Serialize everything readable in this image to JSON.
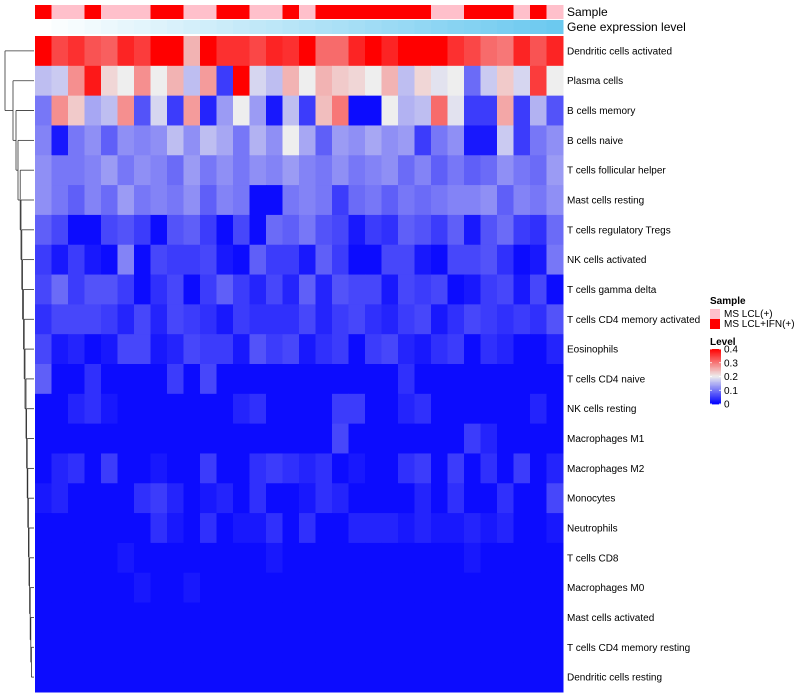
{
  "chart_data": {
    "type": "heatmap",
    "title": "",
    "annotations": {
      "sample": {
        "label": "Sample",
        "values": [
          1,
          0,
          0,
          1,
          0,
          0,
          0,
          1,
          1,
          0,
          0,
          1,
          1,
          0,
          0,
          1,
          0,
          1,
          1,
          1,
          1,
          1,
          1,
          1,
          0,
          0,
          1,
          1,
          1,
          0,
          1,
          0
        ],
        "colors": [
          "#ffc0cb",
          "#ff0000"
        ]
      },
      "gene_expression": {
        "label": "Gene expression level",
        "gradient": [
          "#ffffff",
          "#6cc9ef"
        ]
      }
    },
    "rows": [
      {
        "name": "Dendritic cells activated",
        "values": [
          0.4,
          0.34,
          0.36,
          0.33,
          0.32,
          0.37,
          0.35,
          0.4,
          0.4,
          0.25,
          0.4,
          0.36,
          0.36,
          0.34,
          0.37,
          0.36,
          0.4,
          0.31,
          0.31,
          0.37,
          0.4,
          0.37,
          0.4,
          0.4,
          0.4,
          0.36,
          0.34,
          0.31,
          0.3,
          0.37,
          0.33,
          0.37
        ]
      },
      {
        "name": "Plasma cells",
        "values": [
          0.16,
          0.17,
          0.28,
          0.38,
          0.22,
          0.2,
          0.28,
          0.2,
          0.25,
          0.16,
          0.27,
          0.05,
          0.4,
          0.18,
          0.16,
          0.25,
          0.2,
          0.25,
          0.23,
          0.22,
          0.2,
          0.25,
          0.16,
          0.22,
          0.19,
          0.2,
          0.09,
          0.17,
          0.23,
          0.18,
          0.35,
          0.2
        ]
      },
      {
        "name": "B cells memory",
        "values": [
          0.1,
          0.28,
          0.23,
          0.14,
          0.16,
          0.28,
          0.07,
          0.18,
          0.05,
          0.27,
          0.03,
          0.13,
          0.2,
          0.13,
          0.02,
          0.16,
          0.05,
          0.24,
          0.3,
          0.01,
          0.01,
          0.2,
          0.15,
          0.16,
          0.31,
          0.19,
          0.05,
          0.05,
          0.26,
          0.05,
          0.15,
          0.07
        ]
      },
      {
        "name": "B cells naive",
        "values": [
          0.11,
          0.02,
          0.1,
          0.12,
          0.08,
          0.12,
          0.11,
          0.12,
          0.16,
          0.12,
          0.16,
          0.14,
          0.1,
          0.15,
          0.12,
          0.2,
          0.14,
          0.08,
          0.13,
          0.12,
          0.14,
          0.12,
          0.13,
          0.05,
          0.1,
          0.12,
          0.02,
          0.02,
          0.17,
          0.05,
          0.1,
          0.12
        ]
      },
      {
        "name": "T cells follicular helper",
        "values": [
          0.12,
          0.1,
          0.1,
          0.11,
          0.13,
          0.1,
          0.12,
          0.11,
          0.09,
          0.13,
          0.1,
          0.12,
          0.1,
          0.12,
          0.11,
          0.13,
          0.11,
          0.1,
          0.12,
          0.1,
          0.11,
          0.12,
          0.09,
          0.11,
          0.08,
          0.1,
          0.08,
          0.09,
          0.12,
          0.1,
          0.09,
          0.13
        ]
      },
      {
        "name": "Mast cells resting",
        "values": [
          0.12,
          0.1,
          0.08,
          0.11,
          0.09,
          0.13,
          0.1,
          0.11,
          0.1,
          0.12,
          0.08,
          0.11,
          0.1,
          0.01,
          0.01,
          0.1,
          0.11,
          0.1,
          0.05,
          0.09,
          0.1,
          0.08,
          0.1,
          0.09,
          0.1,
          0.11,
          0.11,
          0.12,
          0.08,
          0.11,
          0.1,
          0.12
        ]
      },
      {
        "name": "T cells regulatory  Tregs",
        "values": [
          0.08,
          0.06,
          0.01,
          0.01,
          0.06,
          0.07,
          0.05,
          0.01,
          0.07,
          0.08,
          0.05,
          0.01,
          0.06,
          0.01,
          0.09,
          0.08,
          0.1,
          0.07,
          0.06,
          0.02,
          0.05,
          0.04,
          0.08,
          0.07,
          0.05,
          0.08,
          0.02,
          0.07,
          0.09,
          0.05,
          0.04,
          0.09
        ]
      },
      {
        "name": "NK cells activated",
        "values": [
          0.05,
          0.02,
          0.05,
          0.02,
          0.01,
          0.11,
          0.01,
          0.06,
          0.05,
          0.05,
          0.06,
          0.02,
          0.01,
          0.08,
          0.05,
          0.05,
          0.02,
          0.08,
          0.05,
          0.01,
          0.01,
          0.06,
          0.06,
          0.02,
          0.01,
          0.06,
          0.06,
          0.07,
          0.04,
          0.01,
          0.02,
          0.1
        ]
      },
      {
        "name": "T cells gamma delta",
        "values": [
          0.06,
          0.09,
          0.05,
          0.07,
          0.07,
          0.05,
          0.01,
          0.04,
          0.06,
          0.01,
          0.05,
          0.08,
          0.05,
          0.03,
          0.06,
          0.03,
          0.08,
          0.03,
          0.07,
          0.06,
          0.06,
          0.02,
          0.06,
          0.05,
          0.06,
          0.01,
          0.02,
          0.05,
          0.06,
          0.02,
          0.06,
          0.01
        ]
      },
      {
        "name": "T cells CD4 memory activated",
        "values": [
          0.04,
          0.06,
          0.06,
          0.06,
          0.05,
          0.03,
          0.06,
          0.03,
          0.06,
          0.05,
          0.04,
          0.02,
          0.05,
          0.04,
          0.04,
          0.04,
          0.06,
          0.03,
          0.05,
          0.06,
          0.04,
          0.03,
          0.05,
          0.06,
          0.02,
          0.04,
          0.06,
          0.05,
          0.04,
          0.05,
          0.04,
          0.07
        ]
      },
      {
        "name": "Eosinophils",
        "values": [
          0.06,
          0.02,
          0.03,
          0.01,
          0.02,
          0.06,
          0.06,
          0.02,
          0.03,
          0.06,
          0.05,
          0.05,
          0.02,
          0.07,
          0.05,
          0.06,
          0.02,
          0.04,
          0.05,
          0.01,
          0.05,
          0.06,
          0.03,
          0.02,
          0.04,
          0.05,
          0.01,
          0.04,
          0.03,
          0.01,
          0.01,
          0.03
        ]
      },
      {
        "name": "T cells CD4 naive",
        "values": [
          0.08,
          0.01,
          0.01,
          0.04,
          0.01,
          0.01,
          0.01,
          0.01,
          0.05,
          0.01,
          0.06,
          0.01,
          0.01,
          0.01,
          0.01,
          0.01,
          0.01,
          0.01,
          0.01,
          0.01,
          0.01,
          0.01,
          0.04,
          0.01,
          0.01,
          0.01,
          0.01,
          0.01,
          0.01,
          0.01,
          0.01,
          0.01
        ]
      },
      {
        "name": "NK cells resting",
        "values": [
          0.01,
          0.01,
          0.03,
          0.04,
          0.02,
          0.01,
          0.01,
          0.01,
          0.01,
          0.01,
          0.01,
          0.01,
          0.03,
          0.04,
          0.01,
          0.01,
          0.01,
          0.01,
          0.05,
          0.05,
          0.01,
          0.01,
          0.03,
          0.04,
          0.01,
          0.01,
          0.01,
          0.01,
          0.01,
          0.01,
          0.03,
          0.01
        ]
      },
      {
        "name": "Macrophages M1",
        "values": [
          0.01,
          0.01,
          0.01,
          0.01,
          0.01,
          0.01,
          0.01,
          0.01,
          0.01,
          0.01,
          0.01,
          0.01,
          0.01,
          0.01,
          0.01,
          0.01,
          0.01,
          0.01,
          0.06,
          0.01,
          0.01,
          0.01,
          0.01,
          0.01,
          0.01,
          0.01,
          0.05,
          0.03,
          0.01,
          0.01,
          0.01,
          0.01
        ]
      },
      {
        "name": "Macrophages M2",
        "values": [
          0.01,
          0.03,
          0.04,
          0.01,
          0.05,
          0.01,
          0.01,
          0.02,
          0.01,
          0.01,
          0.05,
          0.01,
          0.01,
          0.04,
          0.05,
          0.04,
          0.03,
          0.04,
          0.01,
          0.02,
          0.01,
          0.01,
          0.04,
          0.05,
          0.01,
          0.05,
          0.01,
          0.04,
          0.01,
          0.05,
          0.01,
          0.03
        ]
      },
      {
        "name": "Monocytes",
        "values": [
          0.02,
          0.03,
          0.01,
          0.01,
          0.01,
          0.01,
          0.04,
          0.05,
          0.03,
          0.01,
          0.02,
          0.03,
          0.01,
          0.04,
          0.01,
          0.01,
          0.02,
          0.04,
          0.03,
          0.01,
          0.01,
          0.01,
          0.01,
          0.03,
          0.01,
          0.04,
          0.01,
          0.01,
          0.04,
          0.01,
          0.01,
          0.06
        ]
      },
      {
        "name": "Neutrophils",
        "values": [
          0.01,
          0.01,
          0.01,
          0.01,
          0.01,
          0.01,
          0.01,
          0.04,
          0.02,
          0.01,
          0.04,
          0.01,
          0.02,
          0.02,
          0.04,
          0.01,
          0.04,
          0.01,
          0.01,
          0.03,
          0.03,
          0.03,
          0.02,
          0.03,
          0.02,
          0.02,
          0.03,
          0.02,
          0.03,
          0.01,
          0.01,
          0.02
        ]
      },
      {
        "name": "T cells CD8",
        "values": [
          0.01,
          0.01,
          0.01,
          0.01,
          0.01,
          0.02,
          0.01,
          0.01,
          0.01,
          0.01,
          0.01,
          0.01,
          0.01,
          0.01,
          0.02,
          0.01,
          0.01,
          0.01,
          0.01,
          0.01,
          0.01,
          0.01,
          0.01,
          0.01,
          0.01,
          0.01,
          0.02,
          0.01,
          0.01,
          0.01,
          0.01,
          0.01
        ]
      },
      {
        "name": "Macrophages M0",
        "values": [
          0.01,
          0.01,
          0.01,
          0.01,
          0.01,
          0.01,
          0.02,
          0.01,
          0.01,
          0.02,
          0.01,
          0.01,
          0.01,
          0.01,
          0.01,
          0.01,
          0.01,
          0.01,
          0.01,
          0.01,
          0.01,
          0.01,
          0.01,
          0.01,
          0.01,
          0.01,
          0.01,
          0.01,
          0.01,
          0.01,
          0.01,
          0.01
        ]
      },
      {
        "name": "Mast cells activated",
        "values": [
          0.01,
          0.01,
          0.01,
          0.01,
          0.01,
          0.01,
          0.01,
          0.01,
          0.01,
          0.01,
          0.01,
          0.01,
          0.01,
          0.01,
          0.01,
          0.01,
          0.01,
          0.01,
          0.01,
          0.01,
          0.01,
          0.01,
          0.01,
          0.01,
          0.01,
          0.01,
          0.01,
          0.01,
          0.01,
          0.01,
          0.01,
          0.01
        ]
      },
      {
        "name": "T cells CD4 memory resting",
        "values": [
          0.01,
          0.01,
          0.01,
          0.01,
          0.01,
          0.01,
          0.01,
          0.01,
          0.01,
          0.01,
          0.01,
          0.01,
          0.01,
          0.01,
          0.01,
          0.01,
          0.01,
          0.01,
          0.01,
          0.01,
          0.01,
          0.01,
          0.01,
          0.01,
          0.01,
          0.01,
          0.01,
          0.01,
          0.01,
          0.01,
          0.01,
          0.01
        ]
      },
      {
        "name": "Dendritic cells resting",
        "values": [
          0.01,
          0.01,
          0.01,
          0.01,
          0.01,
          0.01,
          0.01,
          0.01,
          0.01,
          0.01,
          0.01,
          0.01,
          0.01,
          0.01,
          0.01,
          0.01,
          0.01,
          0.01,
          0.01,
          0.01,
          0.01,
          0.01,
          0.01,
          0.01,
          0.01,
          0.01,
          0.01,
          0.01,
          0.01,
          0.01,
          0.01,
          0.01
        ]
      }
    ],
    "color_scale": {
      "domain": [
        0,
        0.2,
        0.4
      ],
      "colors": [
        "#0000ff",
        "#eeeeee",
        "#ff0000"
      ]
    },
    "legend": {
      "position": "right",
      "sample": {
        "title": "Sample",
        "entries": [
          {
            "label": "MS LCL(+)",
            "color": "#ffc0cb"
          },
          {
            "label": "MS LCL+IFN(+)",
            "color": "#ff0000"
          }
        ]
      },
      "level": {
        "title": "Level",
        "ticks": [
          0.4,
          0.3,
          0.2,
          0.1,
          0
        ],
        "tick_labels": [
          "0.4",
          "0.3",
          "0.2",
          "0.1",
          "0"
        ]
      }
    },
    "row_dendrogram": true
  }
}
